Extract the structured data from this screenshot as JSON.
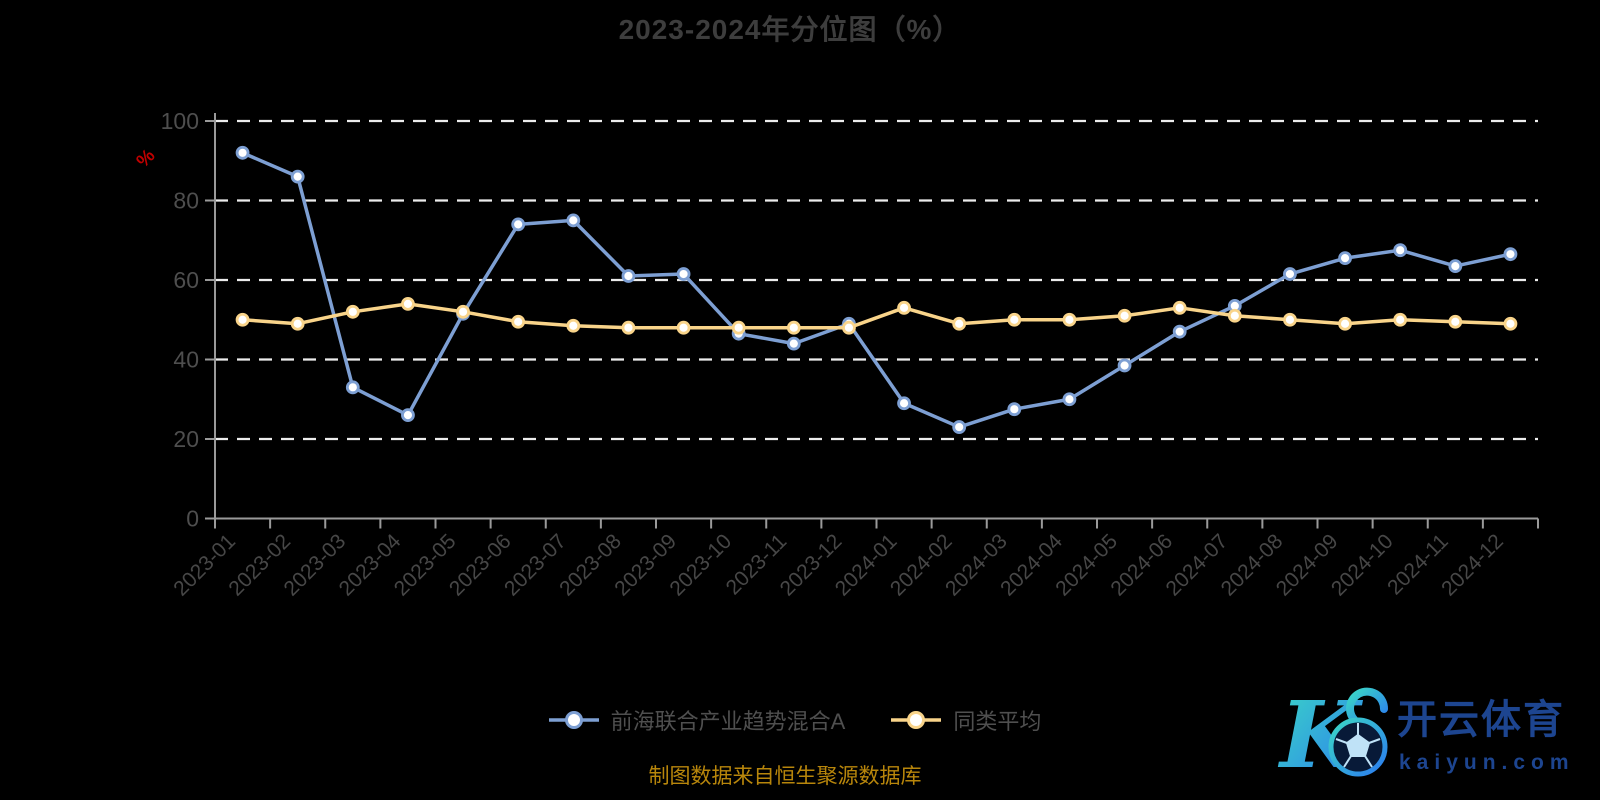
{
  "header": {
    "title": "2023-2024年分位图（%）"
  },
  "chart_data": {
    "type": "line",
    "title": "2023-2024年分位图（%）",
    "categories": [
      "2023-01",
      "2023-02",
      "2023-03",
      "2023-04",
      "2023-05",
      "2023-06",
      "2023-07",
      "2023-08",
      "2023-09",
      "2023-10",
      "2023-11",
      "2023-12",
      "2024-01",
      "2024-02",
      "2024-03",
      "2024-04",
      "2024-05",
      "2024-06",
      "2024-07",
      "2024-08",
      "2024-09",
      "2024-10",
      "2024-11",
      "2024-12"
    ],
    "series": [
      {
        "name": "前海联合产业趋势混合A",
        "color": "#7d9fd3",
        "marker_fill": "#ffffff",
        "values": [
          92,
          86,
          33,
          26,
          51.5,
          74,
          75,
          61,
          61.5,
          46.5,
          44,
          49,
          29,
          23,
          27.5,
          30,
          38.5,
          47,
          53.5,
          61.5,
          65.5,
          67.5,
          63.5,
          66.5
        ]
      },
      {
        "name": "同类平均",
        "color": "#f9d48a",
        "marker_fill": "#ffffff",
        "values": [
          50,
          49,
          52,
          54,
          52,
          49.5,
          48.5,
          48,
          48,
          48,
          48,
          48,
          53,
          49,
          50,
          50,
          51,
          53,
          51,
          50,
          49,
          50,
          49.5,
          49
        ]
      }
    ],
    "ylabel": "%",
    "y_ticks": [
      0,
      20,
      40,
      60,
      80,
      100
    ],
    "ylim": [
      0,
      100
    ],
    "grid": "dashed horizontal white lines at 20/40/60/80/100",
    "legend_position": "bottom-center"
  },
  "footer": {
    "source_note": "制图数据来自恒生聚源数据库"
  },
  "logo": {
    "k_letter": "K",
    "brand_name_cn": "开云体育",
    "brand_domain": "kaiyun.com",
    "gradient_start": "#3bd7c5",
    "gradient_end": "#2b7bf0",
    "text_color": "#1d4590"
  },
  "colors": {
    "background": "#000000",
    "title": "#3d3d3d",
    "axis_line": "#9a9a9a",
    "y_tick_label": "#4e4e4e",
    "x_tick_label": "#474747",
    "gridline": "#ececec",
    "legend_text": "#4f4f4f",
    "source_text": "#b8860b",
    "y_unit_label": "#c00000"
  }
}
